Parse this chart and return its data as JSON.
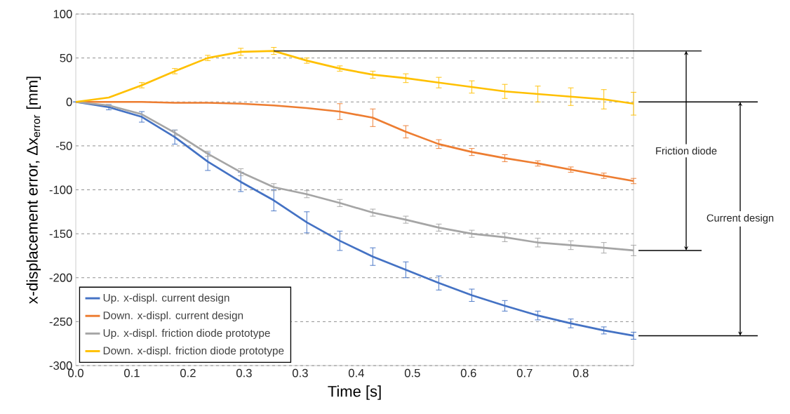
{
  "chart_data": {
    "type": "line",
    "xlabel": "Time [s]",
    "ylabel": "x-displacement error, Δx$_{error}$ [mm]",
    "x": [
      0,
      0.05,
      0.1,
      0.15,
      0.2,
      0.25,
      0.3,
      0.35,
      0.4,
      0.45,
      0.5,
      0.55,
      0.6,
      0.65,
      0.7,
      0.75,
      0.8,
      0.845
    ],
    "series": [
      {
        "name": "Up. x-displ. current design",
        "color": "#4472c4",
        "values": [
          0,
          -6,
          -17,
          -40,
          -68,
          -91,
          -112,
          -137,
          -158,
          -176,
          -191,
          -206,
          -220,
          -232,
          -243,
          -252,
          -260,
          -266
        ],
        "errors": [
          0,
          3,
          6,
          8,
          10,
          11,
          12,
          12,
          11,
          10,
          9,
          8,
          7,
          6,
          5,
          5,
          4,
          4
        ]
      },
      {
        "name": "Down. x-displ. current design",
        "color": "#ed7d31",
        "values": [
          0,
          0,
          0,
          -1,
          -1,
          -2,
          -4,
          -7,
          -11,
          -18,
          -34,
          -48,
          -57,
          -64,
          -70,
          -77,
          -84,
          -90
        ],
        "errors": [
          null,
          null,
          null,
          null,
          null,
          null,
          null,
          null,
          9,
          10,
          7,
          5,
          4,
          4,
          3,
          3,
          3,
          3
        ]
      },
      {
        "name": "Up. x-displ. friction diode prototype",
        "color": "#a5a5a5",
        "values": [
          0,
          -4,
          -14,
          -35,
          -59,
          -80,
          -97,
          -105,
          -115,
          -126,
          -134,
          -143,
          -150,
          -154,
          -160,
          -163,
          -166,
          -169
        ],
        "errors": [
          null,
          null,
          null,
          3,
          3,
          4,
          4,
          4,
          4,
          4,
          4,
          4,
          4,
          5,
          5,
          5,
          6,
          6
        ]
      },
      {
        "name": "Down. x-displ. friction diode prototype",
        "color": "#ffc000",
        "values": [
          0,
          5,
          19,
          35,
          50,
          57,
          58,
          47,
          38,
          31,
          27,
          22,
          17,
          12,
          9,
          6,
          3,
          -2
        ],
        "errors": [
          null,
          null,
          3,
          3,
          3,
          4,
          4,
          3,
          3,
          4,
          5,
          6,
          7,
          8,
          9,
          10,
          11,
          13
        ]
      }
    ],
    "xlim": [
      0,
      0.845
    ],
    "xticks": [
      {
        "value": 0,
        "label": "0.0"
      },
      {
        "value": 0.085,
        "label": "0.1"
      },
      {
        "value": 0.17,
        "label": "0.2"
      },
      {
        "value": 0.255,
        "label": "0.3"
      },
      {
        "value": 0.34,
        "label": "0.3"
      },
      {
        "value": 0.425,
        "label": "0.4"
      },
      {
        "value": 0.51,
        "label": "0.5"
      },
      {
        "value": 0.595,
        "label": "0.6"
      },
      {
        "value": 0.68,
        "label": "0.7"
      },
      {
        "value": 0.765,
        "label": "0.8"
      }
    ],
    "ylim": [
      -300,
      100
    ],
    "yticks": [
      -300,
      -250,
      -200,
      -150,
      -100,
      -50,
      0,
      50,
      100
    ],
    "ref_lines": [
      {
        "axis": "y",
        "value": 58
      }
    ],
    "grid": "y",
    "legend": "bottom left",
    "marker": "none",
    "line_style": "solid",
    "annotations": [
      "Friction diode",
      "Current design"
    ]
  }
}
